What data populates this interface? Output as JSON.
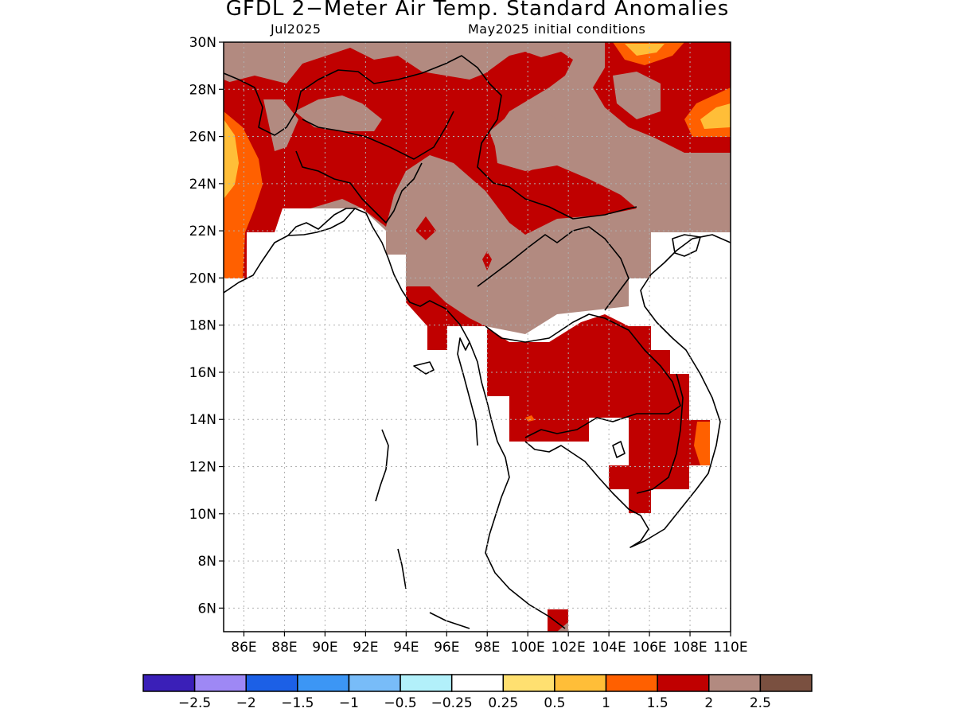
{
  "title": "GFDL 2−Meter Air Temp. Standard Anomalies",
  "subtitle_left": "Jul2025",
  "subtitle_right": "May2025 initial conditions",
  "axes": {
    "lat_ticks": [
      "30N",
      "28N",
      "26N",
      "24N",
      "22N",
      "20N",
      "18N",
      "16N",
      "14N",
      "12N",
      "10N",
      "8N",
      "6N"
    ],
    "lon_ticks": [
      "86E",
      "88E",
      "90E",
      "92E",
      "94E",
      "96E",
      "98E",
      "100E",
      "102E",
      "104E",
      "106E",
      "108E",
      "110E"
    ],
    "lat_range": [
      5,
      30
    ],
    "lon_range": [
      85,
      110
    ],
    "grid": "dotted"
  },
  "colorbar": {
    "colors": [
      "#3a1fb8",
      "#9e88f5",
      "#1c60e6",
      "#3c96f5",
      "#78bcf8",
      "#b2f0fa",
      "#ffffff",
      "#ffe070",
      "#ffbe38",
      "#ff6000",
      "#c00000",
      "#b28a80",
      "#7a5040"
    ],
    "labels": [
      "−2.5",
      "−2",
      "−1.5",
      "−1",
      "−0.5",
      "−0.25",
      "0.25",
      "0.5",
      "1",
      "1.5",
      "2",
      "2.5"
    ]
  },
  "map_colors": {
    "brown": "#b28a80",
    "red": "#c00000",
    "orange": "#ff6000",
    "gold": "#ffbe38",
    "yellow": "#ffe070",
    "coast": "#000000"
  }
}
